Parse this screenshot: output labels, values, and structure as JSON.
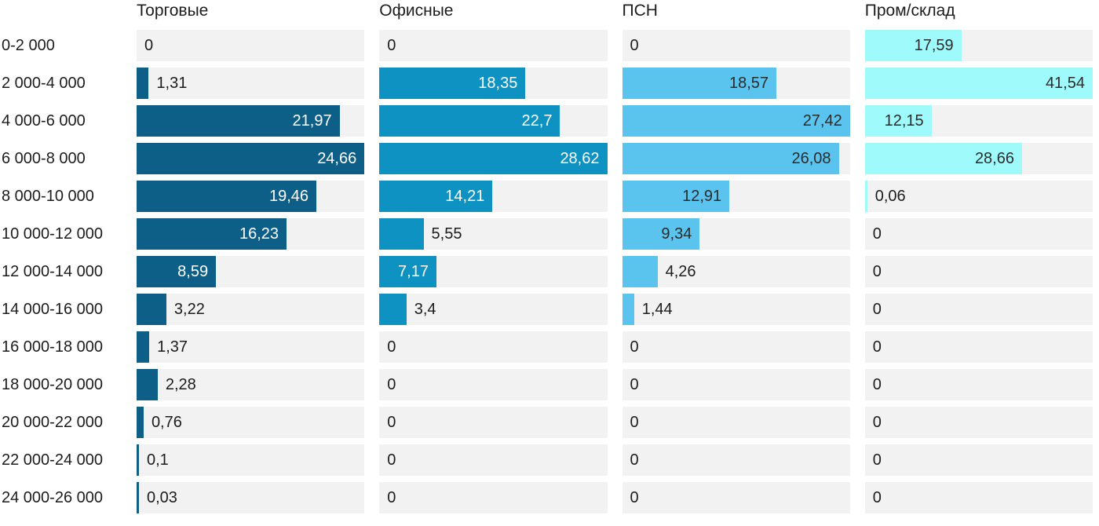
{
  "chart_data": {
    "type": "bar",
    "orientation": "horizontal",
    "normalization": "per-series-max",
    "grid": false,
    "legend": false,
    "track_color": "#f2f2f2",
    "decimal_separator": ",",
    "categories": [
      "0-2 000",
      "2 000-4 000",
      "4 000-6 000",
      "6 000-8 000",
      "8 000-10 000",
      "10 000-12 000",
      "12 000-14 000",
      "14 000-16 000",
      "16 000-18 000",
      "18 000-20 000",
      "20 000-22 000",
      "22 000-24 000",
      "24 000-26 000"
    ],
    "series": [
      {
        "name": "Торговые",
        "color": "#0e5f87",
        "inside_label_color": "#ffffff",
        "values": [
          0,
          1.31,
          21.97,
          24.66,
          19.46,
          16.23,
          8.59,
          3.22,
          1.37,
          2.28,
          0.76,
          0.1,
          0.03
        ],
        "display": [
          "0",
          "1,31",
          "21,97",
          "24,66",
          "19,46",
          "16,23",
          "8,59",
          "3,22",
          "1,37",
          "2,28",
          "0,76",
          "0,1",
          "0,03"
        ]
      },
      {
        "name": "Офисные",
        "color": "#0d92c1",
        "inside_label_color": "#ffffff",
        "values": [
          0,
          18.35,
          22.7,
          28.62,
          14.21,
          5.55,
          7.17,
          3.4,
          0,
          0,
          0,
          0,
          0
        ],
        "display": [
          "0",
          "18,35",
          "22,7",
          "28,62",
          "14,21",
          "5,55",
          "7,17",
          "3,4",
          "0",
          "0",
          "0",
          "0",
          "0"
        ]
      },
      {
        "name": "ПСН",
        "color": "#5ac4ef",
        "inside_label_color": "#2b2b2b",
        "values": [
          0,
          18.57,
          27.42,
          26.08,
          12.91,
          9.34,
          4.26,
          1.44,
          0,
          0,
          0,
          0,
          0
        ],
        "display": [
          "0",
          "18,57",
          "27,42",
          "26,08",
          "12,91",
          "9,34",
          "4,26",
          "1,44",
          "0",
          "0",
          "0",
          "0",
          "0"
        ]
      },
      {
        "name": "Пром/склад",
        "color": "#9ffbfb",
        "inside_label_color": "#2b2b2b",
        "values": [
          17.59,
          41.54,
          12.15,
          28.66,
          0.06,
          0,
          0,
          0,
          0,
          0,
          0,
          0,
          0
        ],
        "display": [
          "17,59",
          "41,54",
          "12,15",
          "28,66",
          "0,06",
          "0",
          "0",
          "0",
          "0",
          "0",
          "0",
          "0",
          "0"
        ]
      }
    ]
  }
}
